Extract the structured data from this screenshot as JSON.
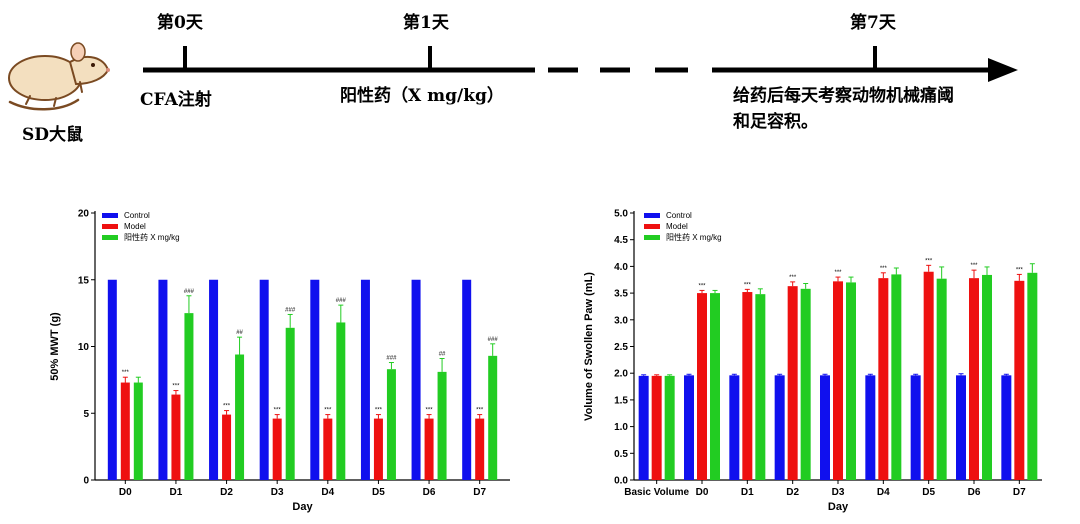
{
  "timeline": {
    "subject_label": "SD大鼠",
    "day0_label": "第0天",
    "day1_label": "第1天",
    "day7_label": "第7天",
    "event_day0": "CFA注射",
    "event_day1": "阳性药（X mg/kg）",
    "event_day7_line1": "给药后每天考察动物机械痛阈",
    "event_day7_line2": "和足容积。",
    "colors": {
      "line": "#000000",
      "mouse_fill": "#f3dfbf",
      "mouse_stroke": "#7a4a22"
    },
    "icons": [
      "rat-icon"
    ]
  },
  "chart_data": [
    {
      "type": "bar",
      "xlabel": "Day",
      "ylabel": "50% MWT (g)",
      "ylim": [
        0,
        20
      ],
      "yticks": [
        0,
        5,
        10,
        15,
        20
      ],
      "categories": [
        "D0",
        "D1",
        "D2",
        "D3",
        "D4",
        "D5",
        "D6",
        "D7"
      ],
      "legend_position": "top-left",
      "grid": false,
      "series": [
        {
          "name": "Control",
          "color": "#1010ee",
          "values": [
            15,
            15,
            15,
            15,
            15,
            15,
            15,
            15
          ],
          "errors": [
            0,
            0,
            0,
            0,
            0,
            0,
            0,
            0
          ],
          "annotations": [
            "",
            "",
            "",
            "",
            "",
            "",
            "",
            ""
          ]
        },
        {
          "name": "Model",
          "color": "#ee1010",
          "values": [
            7.3,
            6.4,
            4.9,
            4.6,
            4.6,
            4.6,
            4.6,
            4.6
          ],
          "errors": [
            0.4,
            0.3,
            0.3,
            0.3,
            0.3,
            0.3,
            0.3,
            0.3
          ],
          "annotations": [
            "***",
            "***",
            "***",
            "***",
            "***",
            "***",
            "***",
            "***"
          ]
        },
        {
          "name": "阳性药 X mg/kg",
          "color": "#22cc22",
          "values": [
            7.3,
            12.5,
            9.4,
            11.4,
            11.8,
            8.3,
            8.1,
            9.3
          ],
          "errors": [
            0.4,
            1.3,
            1.3,
            1.0,
            1.3,
            0.5,
            1.0,
            0.9
          ],
          "annotations": [
            "",
            "###",
            "##",
            "###",
            "###",
            "###",
            "##",
            "###"
          ]
        }
      ]
    },
    {
      "type": "bar",
      "xlabel": "Day",
      "ylabel": "Volume of Swollen Paw (mL)",
      "ylim": [
        0,
        5
      ],
      "yticks": [
        "0.0",
        "0.5",
        "1.0",
        "1.5",
        "2.0",
        "2.5",
        "3.0",
        "3.5",
        "4.0",
        "4.5",
        "5.0"
      ],
      "categories": [
        "Basic Volume",
        "D0",
        "D1",
        "D2",
        "D3",
        "D4",
        "D5",
        "D6",
        "D7"
      ],
      "legend_position": "top-left",
      "grid": false,
      "series": [
        {
          "name": "Control",
          "color": "#1010ee",
          "values": [
            1.95,
            1.96,
            1.96,
            1.96,
            1.96,
            1.96,
            1.96,
            1.96,
            1.96
          ],
          "errors": [
            0.02,
            0.02,
            0.02,
            0.02,
            0.02,
            0.02,
            0.02,
            0.03,
            0.02
          ],
          "annotations": [
            "",
            "",
            "",
            "",
            "",
            "",
            "",
            "",
            ""
          ]
        },
        {
          "name": "Model",
          "color": "#ee1010",
          "values": [
            1.95,
            3.5,
            3.52,
            3.63,
            3.72,
            3.78,
            3.9,
            3.78,
            3.73
          ],
          "errors": [
            0.02,
            0.05,
            0.05,
            0.08,
            0.08,
            0.1,
            0.12,
            0.15,
            0.12
          ],
          "annotations": [
            "",
            "***",
            "***",
            "***",
            "***",
            "***",
            "***",
            "***",
            "***"
          ]
        },
        {
          "name": "阳性药 X mg/kg",
          "color": "#22cc22",
          "values": [
            1.95,
            3.5,
            3.48,
            3.58,
            3.7,
            3.85,
            3.77,
            3.84,
            3.88
          ],
          "errors": [
            0.02,
            0.05,
            0.1,
            0.1,
            0.1,
            0.12,
            0.22,
            0.15,
            0.17
          ],
          "annotations": [
            "",
            "",
            "",
            "",
            "",
            "",
            "",
            "",
            ""
          ]
        }
      ]
    }
  ]
}
